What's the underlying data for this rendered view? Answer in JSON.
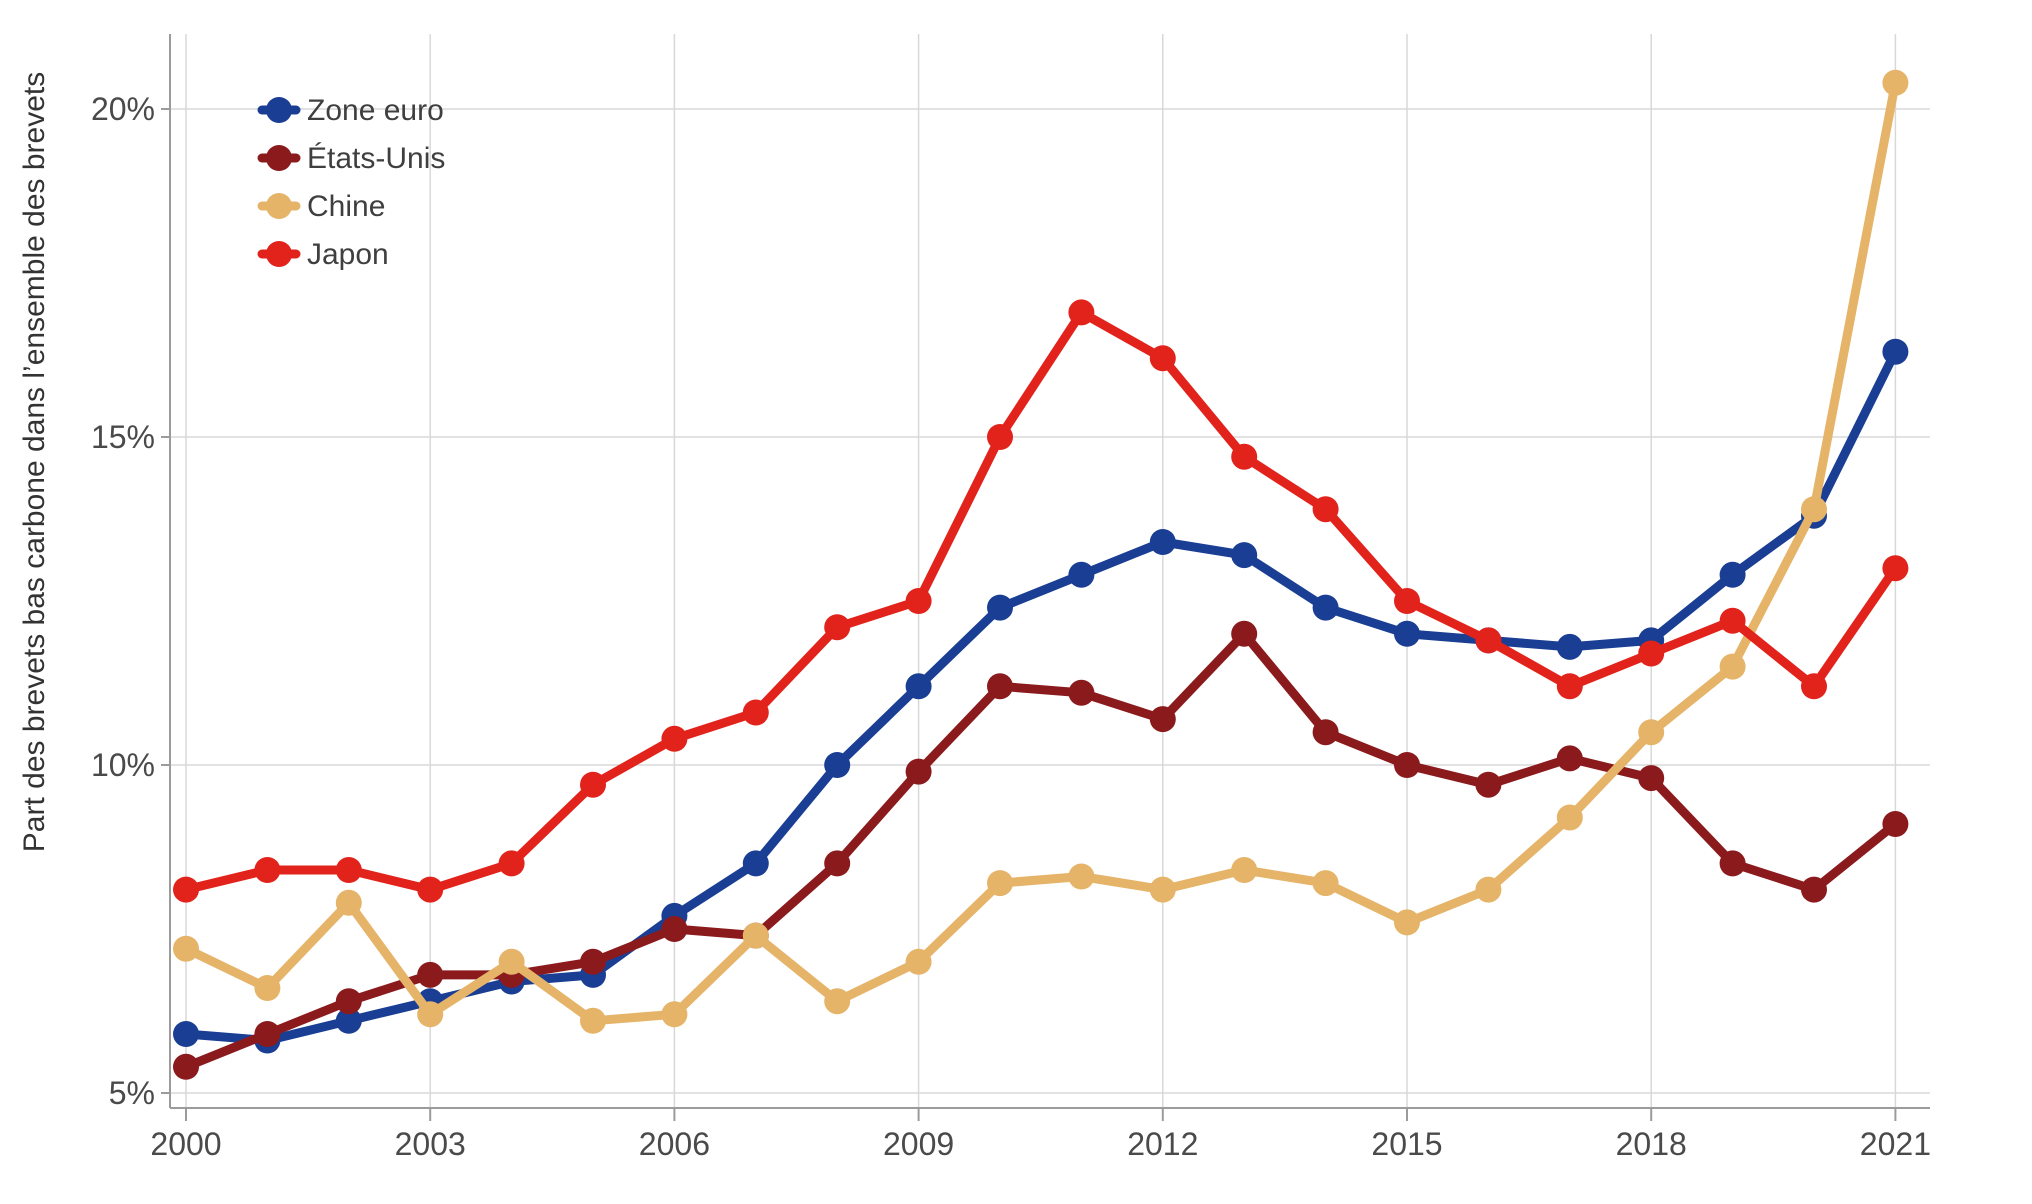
{
  "chart_data": {
    "type": "line",
    "title": "",
    "ylabel": "Part des brevets bas carbone dans l’ensemble des brevets",
    "xlabel": "",
    "grid": true,
    "legend_position": "top-left",
    "x": [
      2000,
      2001,
      2002,
      2003,
      2004,
      2005,
      2006,
      2007,
      2008,
      2009,
      2010,
      2011,
      2012,
      2013,
      2014,
      2015,
      2016,
      2017,
      2018,
      2019,
      2020,
      2021
    ],
    "series": [
      {
        "id": "zone-euro",
        "name": "Zone euro",
        "color": "#1a3e94",
        "values": [
          5.9,
          5.8,
          6.1,
          6.4,
          6.7,
          6.8,
          7.7,
          8.5,
          10.0,
          11.2,
          12.4,
          12.9,
          13.4,
          13.2,
          12.4,
          12.0,
          11.9,
          11.8,
          11.9,
          12.9,
          13.8,
          16.3
        ]
      },
      {
        "id": "etats-unis",
        "name": "États-Unis",
        "color": "#8b1a1d",
        "values": [
          5.4,
          5.9,
          6.4,
          6.8,
          6.8,
          7.0,
          7.5,
          7.4,
          8.5,
          9.9,
          11.2,
          11.1,
          10.7,
          12.0,
          10.5,
          10.0,
          9.7,
          10.1,
          9.8,
          8.5,
          8.1,
          9.1
        ]
      },
      {
        "id": "chine",
        "name": "Chine",
        "color": "#e5b469",
        "values": [
          7.2,
          6.6,
          7.9,
          6.2,
          7.0,
          6.1,
          6.2,
          7.4,
          6.4,
          7.0,
          8.2,
          8.3,
          8.1,
          8.4,
          8.2,
          7.6,
          8.1,
          9.2,
          10.5,
          11.5,
          13.9,
          20.4
        ]
      },
      {
        "id": "japon",
        "name": "Japon",
        "color": "#e2231b",
        "values": [
          8.1,
          8.4,
          8.4,
          8.1,
          8.5,
          9.7,
          10.4,
          10.8,
          12.1,
          12.5,
          15.0,
          16.9,
          16.2,
          14.7,
          13.9,
          12.5,
          11.9,
          11.2,
          11.7,
          12.2,
          11.2,
          13.0
        ]
      }
    ],
    "y_axis": {
      "unit": "%",
      "tick_values": [
        5,
        10,
        15,
        20
      ],
      "tick_labels": [
        "5%",
        "10%",
        "15%",
        "20%"
      ],
      "range": [
        4.8,
        21.2
      ]
    },
    "x_axis": {
      "tick_values": [
        2000,
        2003,
        2006,
        2009,
        2012,
        2015,
        2018,
        2021
      ],
      "tick_labels": [
        "2000",
        "2003",
        "2006",
        "2009",
        "2012",
        "2015",
        "2018",
        "2021"
      ],
      "range": [
        2000,
        2021
      ]
    },
    "style": {
      "grid_color": "#d8d8d8",
      "axis_color": "#9b9b9b",
      "tick_label_color": "#4a4a4a",
      "legend_text_color": "#3f3f3f",
      "axis_title_color": "#333333",
      "background": "#ffffff"
    }
  }
}
